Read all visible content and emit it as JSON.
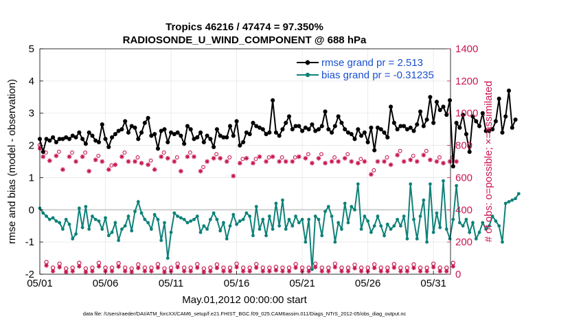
{
  "chart_data": {
    "type": "line",
    "title": "Tropics 46216 / 47474 = 97.350%",
    "subtitle": "RADIOSONDE_U_WIND_COMPONENT @ 688 hPa",
    "xlabel": "May.01,2012 00:00:00 start",
    "ylabel": "rmse and bias (model - observation)",
    "ylabel_right": "# of obs: o=possible; ×=assimilated",
    "footnote": "data file: /Users/raeder/DAI/ATM_forcXX/CAM6_setup/f.e21.FHIST_BGC.f09_025.CAM6assim.011/Diags_NTrS_2012-05/obs_diag_output.nc",
    "xlim": [
      1,
      32.3
    ],
    "ylim": [
      -2,
      5
    ],
    "ylim_right": [
      0,
      1400
    ],
    "x_ticks": [
      1,
      6,
      11,
      16,
      21,
      26,
      31
    ],
    "x_tick_labels": [
      "05/01",
      "05/06",
      "05/11",
      "05/16",
      "05/21",
      "05/26",
      "05/31"
    ],
    "y_ticks": [
      -2,
      -1,
      0,
      1,
      2,
      3,
      4,
      5
    ],
    "y_tick_labels": [
      "-2",
      "-1",
      "0",
      "1",
      "2",
      "3",
      "4",
      "5"
    ],
    "y_ticks_right": [
      0,
      200,
      400,
      600,
      800,
      1000,
      1200,
      1400
    ],
    "y_tick_labels_right": [
      "0",
      "200",
      "400",
      "600",
      "800",
      "1000",
      "1200",
      "1400"
    ],
    "legend_position": "top-right",
    "colors": {
      "rmse": "#000000",
      "bias": "#0d8178",
      "obs": "#c8174f",
      "zero_line": "#cfcfcf",
      "legend_text": "#1a4fd0"
    },
    "series": [
      {
        "name": "rmse grand pr = 2.513",
        "x_start": 1,
        "x_step": 0.25,
        "values": [
          2.2,
          1.8,
          2.2,
          2.15,
          2.25,
          2.1,
          2.2,
          2.2,
          2.25,
          2.2,
          2.3,
          2.25,
          2.4,
          2.2,
          2.05,
          2.4,
          2.3,
          2.15,
          2.1,
          2.65,
          2.2,
          1.95,
          2.25,
          2.35,
          2.45,
          2.5,
          2.75,
          2.4,
          2.6,
          2.55,
          2.2,
          2.4,
          2.7,
          2.85,
          2.3,
          2.35,
          1.9,
          2.45,
          2.5,
          2.1,
          2.4,
          2.35,
          2.4,
          2.3,
          2.05,
          2.6,
          2.5,
          2.2,
          2.25,
          2.4,
          2.1,
          2.3,
          2.2,
          1.95,
          2.5,
          2.3,
          2.25,
          2.25,
          2.6,
          2.3,
          2.75,
          2.0,
          2.1,
          2.4,
          2.35,
          2.7,
          2.6,
          2.55,
          2.5,
          2.35,
          2.4,
          3.4,
          2.4,
          2.3,
          2.5,
          2.7,
          2.9,
          2.5,
          2.6,
          2.6,
          2.45,
          2.55,
          2.5,
          2.65,
          2.45,
          2.5,
          2.6,
          3.05,
          2.5,
          2.4,
          2.6,
          2.9,
          2.7,
          2.5,
          2.4,
          2.35,
          2.2,
          2.5,
          2.3,
          2.4,
          2.1,
          2.55,
          1.85,
          2.55,
          2.5,
          2.4,
          2.25,
          3.2,
          2.7,
          2.5,
          2.6,
          2.6,
          2.5,
          2.55,
          2.45,
          2.65,
          3.05,
          2.6,
          2.8,
          3.5,
          2.7,
          3.35,
          3.1,
          3.2,
          2.95,
          3.4,
          1.35,
          2.7,
          2.55,
          2.95,
          2.35,
          1.8,
          2.9,
          2.75,
          2.6,
          3.0,
          2.45,
          2.45,
          2.5,
          2.75,
          3.45,
          2.4,
          2.9,
          3.7,
          2.55,
          2.8
        ]
      },
      {
        "name": "bias grand pr = -0.31235",
        "x_start": 1,
        "x_step": 0.25,
        "values": [
          0.05,
          -0.1,
          -0.2,
          -0.3,
          -0.25,
          -0.35,
          -0.4,
          -0.6,
          -0.3,
          -0.45,
          -0.9,
          -0.75,
          0.05,
          -0.55,
          0.1,
          -0.6,
          -0.2,
          -0.3,
          -0.35,
          -0.6,
          -0.25,
          -0.8,
          -0.7,
          -0.4,
          -0.95,
          -0.6,
          -0.5,
          -0.2,
          -0.65,
          -0.05,
          0.25,
          -0.1,
          -0.3,
          -0.4,
          -0.6,
          -0.15,
          -0.3,
          -0.95,
          -0.4,
          -1.5,
          -0.7,
          -0.1,
          -0.2,
          -0.25,
          -0.3,
          -0.4,
          -0.35,
          -0.3,
          -0.2,
          -0.7,
          -0.5,
          -0.6,
          -0.3,
          -0.1,
          -0.3,
          -0.65,
          -0.4,
          -0.9,
          -0.5,
          -0.15,
          -0.45,
          -0.35,
          -0.3,
          -0.1,
          -0.2,
          -0.8,
          0.1,
          -0.6,
          -0.3,
          -0.8,
          -0.2,
          -0.6,
          0.2,
          -0.5,
          0.3,
          -0.6,
          -0.3,
          -0.5,
          -0.2,
          -0.4,
          -0.3,
          -1.0,
          -0.3,
          -1.85,
          -0.2,
          -0.3,
          -0.8,
          -0.05,
          0.1,
          -0.2,
          -1.0,
          -0.4,
          -0.6,
          0.2,
          -0.4,
          0.1,
          0.0,
          0.8,
          -0.6,
          -0.2,
          -0.35,
          -0.7,
          -0.5,
          -0.2,
          -0.5,
          -0.8,
          -0.45,
          -0.6,
          -0.5,
          -0.3,
          -0.5,
          -0.2,
          -0.9,
          0.8,
          -0.3,
          -0.9,
          -0.2,
          0.3,
          -1.0,
          0.8,
          -0.7,
          -0.1,
          -0.55,
          0.9,
          -0.6,
          -0.9,
          -0.3,
          0.75,
          -0.4,
          -0.5,
          -0.3,
          -0.7,
          -0.4,
          -0.9,
          -0.7,
          -0.4,
          -0.6,
          -0.5,
          -0.2,
          -0.35,
          -0.5,
          -1.0,
          0.2,
          0.25,
          0.3,
          0.35,
          0.5
        ]
      },
      {
        "name": "obs possible",
        "marker": "circle",
        "x_start": 1,
        "x_step": 0.5,
        "values": [
          802,
          75,
          40,
          65,
          35,
          40,
          70,
          35,
          40,
          70,
          40,
          40,
          68,
          40,
          35,
          60,
          40,
          40,
          62,
          35,
          40,
          65,
          40,
          40,
          62,
          35,
          40,
          60,
          40,
          40,
          65,
          40,
          40,
          62,
          40,
          40,
          45,
          40,
          40,
          62,
          40,
          40,
          65,
          40,
          40,
          65,
          40,
          40,
          58,
          40,
          40,
          60,
          40,
          40,
          62,
          40,
          40,
          60,
          40,
          40,
          65,
          40,
          40,
          70
        ]
      },
      {
        "name": "obs assimilated",
        "marker": "x",
        "x_start": 1.25,
        "x_step": 0.5,
        "values": [
          730,
          705,
          735,
          650,
          730,
          700,
          730,
          640,
          710,
          700,
          650,
          680,
          730,
          700,
          700,
          690,
          680,
          650,
          730,
          720,
          700,
          640,
          730,
          730,
          640,
          700,
          720,
          720,
          700,
          610,
          690,
          720,
          690,
          730,
          700,
          730,
          700,
          700,
          700,
          730,
          720,
          690,
          720,
          690,
          700,
          700,
          720,
          700,
          690,
          700,
          620,
          700,
          700,
          680,
          740,
          700,
          710,
          700,
          740,
          710,
          700,
          690,
          700,
          700
        ]
      }
    ]
  }
}
